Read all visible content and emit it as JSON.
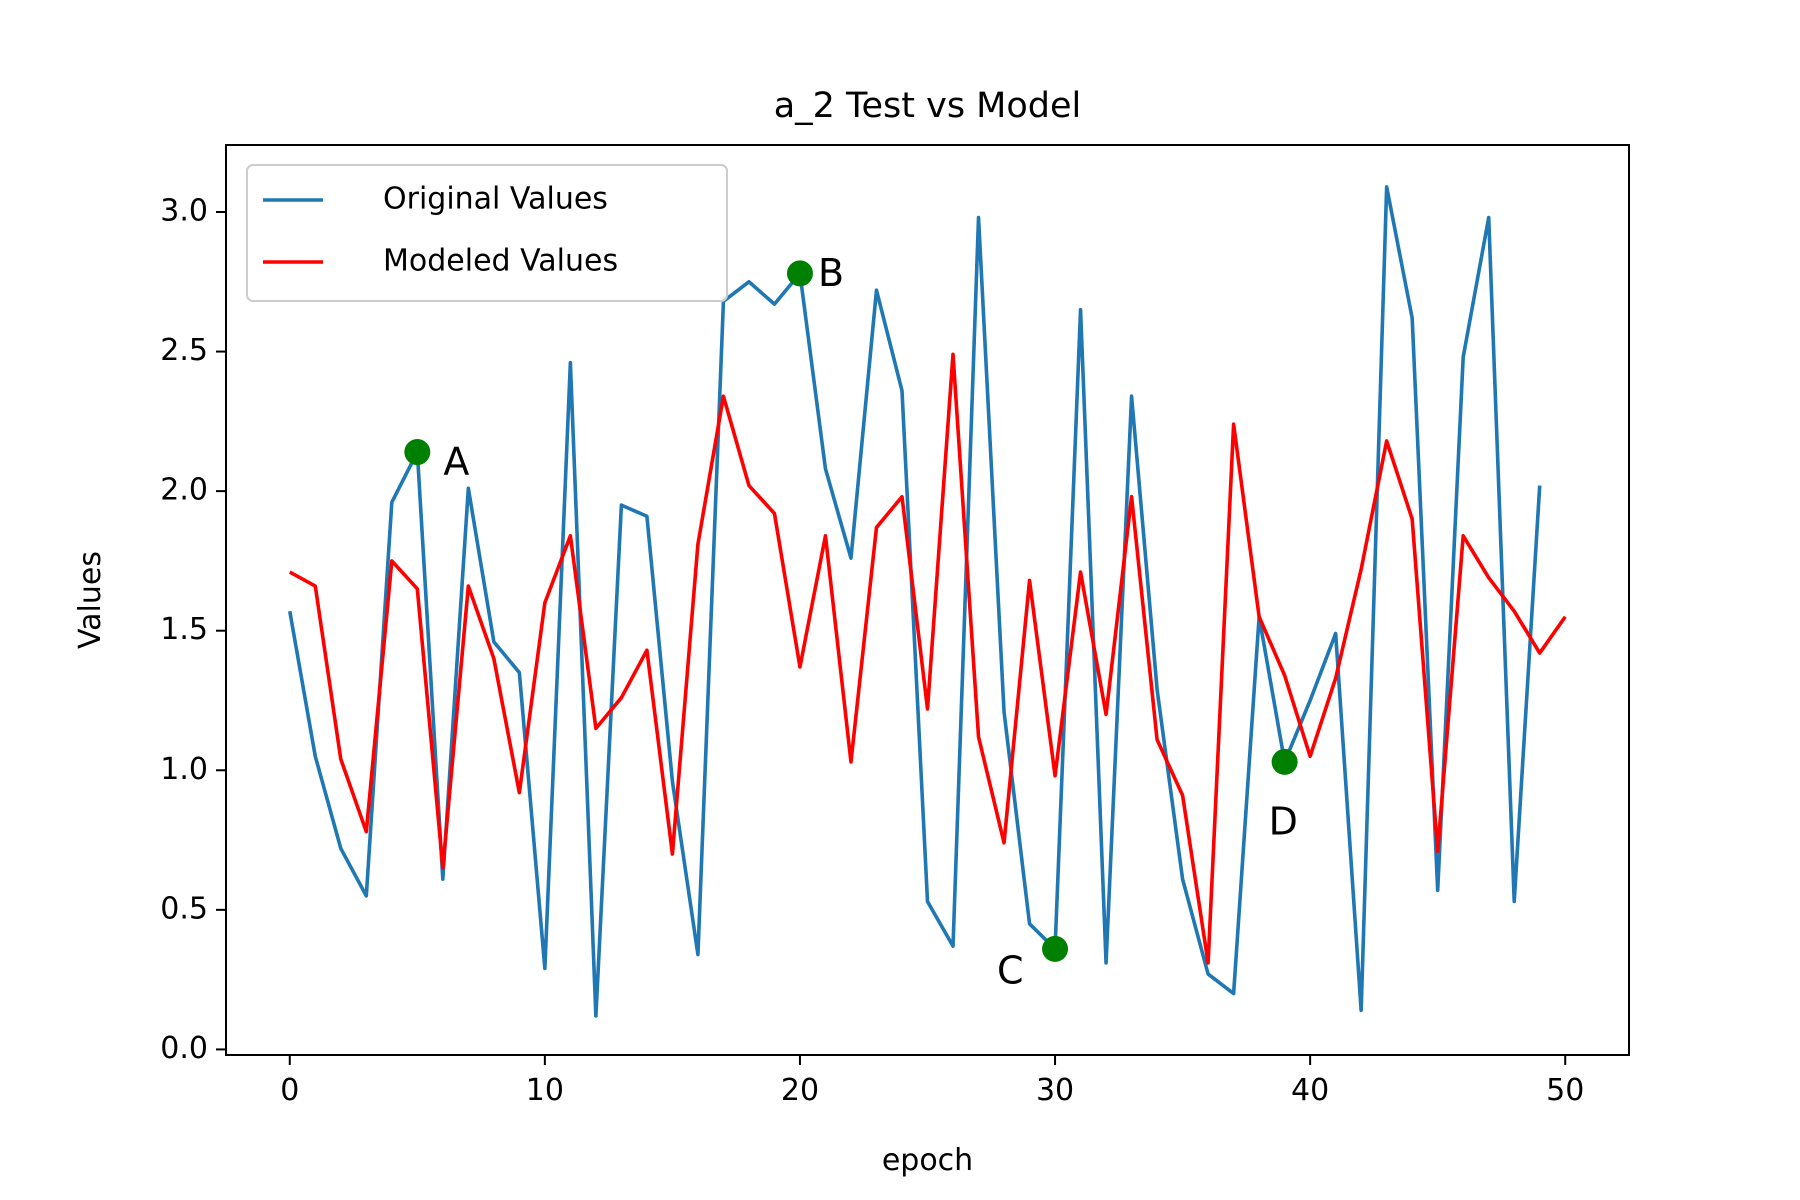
{
  "chart_data": {
    "type": "line",
    "title": "a_2 Test vs Model",
    "xlabel": "epoch",
    "ylabel": "Values",
    "xlim": [
      -2.5,
      52.5
    ],
    "ylim": [
      -0.02,
      3.24
    ],
    "xticks": [
      0,
      10,
      20,
      30,
      40,
      50
    ],
    "yticks": [
      0.0,
      0.5,
      1.0,
      1.5,
      2.0,
      2.5,
      3.0
    ],
    "xtick_labels": [
      "0",
      "10",
      "20",
      "30",
      "40",
      "50"
    ],
    "ytick_labels": [
      "0.0",
      "0.5",
      "1.0",
      "1.5",
      "2.0",
      "2.5",
      "3.0"
    ],
    "grid": false,
    "legend_position": "top-left",
    "series": [
      {
        "name": "Original Values",
        "color": "#1f77b4",
        "x": [
          0,
          1,
          2,
          3,
          4,
          5,
          6,
          7,
          8,
          9,
          10,
          11,
          12,
          13,
          14,
          15,
          16,
          17,
          18,
          19,
          20,
          21,
          22,
          23,
          24,
          25,
          26,
          27,
          28,
          29,
          30,
          31,
          32,
          33,
          34,
          35,
          36,
          37,
          38,
          39,
          40,
          41,
          42,
          43,
          44,
          45,
          46,
          47,
          48,
          49
        ],
        "y": [
          1.57,
          1.05,
          0.72,
          0.55,
          1.96,
          2.14,
          0.61,
          2.01,
          1.46,
          1.35,
          0.29,
          2.46,
          0.12,
          1.95,
          1.91,
          0.96,
          0.34,
          2.68,
          2.75,
          2.67,
          2.78,
          2.08,
          1.76,
          2.72,
          2.36,
          0.53,
          0.37,
          2.98,
          1.21,
          0.45,
          0.36,
          2.65,
          0.31,
          2.34,
          1.29,
          0.61,
          0.27,
          0.2,
          1.55,
          1.03,
          1.25,
          1.49,
          0.14,
          3.09,
          2.62,
          0.57,
          2.48,
          2.98,
          0.53,
          2.02
        ]
      },
      {
        "name": "Modeled Values",
        "color": "#ff0000",
        "x": [
          0,
          1,
          2,
          3,
          4,
          5,
          6,
          7,
          8,
          9,
          10,
          11,
          12,
          13,
          14,
          15,
          16,
          17,
          18,
          19,
          20,
          21,
          22,
          23,
          24,
          25,
          26,
          27,
          28,
          29,
          30,
          31,
          32,
          33,
          34,
          35,
          36,
          37,
          38,
          39,
          40,
          41,
          42,
          43,
          44,
          45,
          46,
          47,
          48,
          49,
          50
        ],
        "y": [
          1.71,
          1.66,
          1.04,
          0.78,
          1.75,
          1.65,
          0.65,
          1.66,
          1.4,
          0.92,
          1.6,
          1.84,
          1.15,
          1.26,
          1.43,
          0.7,
          1.81,
          2.34,
          2.02,
          1.92,
          1.37,
          1.84,
          1.03,
          1.87,
          1.98,
          1.22,
          2.49,
          1.12,
          0.74,
          1.68,
          0.98,
          1.71,
          1.2,
          1.98,
          1.11,
          0.91,
          0.31,
          2.24,
          1.55,
          1.34,
          1.05,
          1.33,
          1.72,
          2.18,
          1.9,
          0.71,
          1.84,
          1.69,
          1.57,
          1.42,
          1.55
        ]
      }
    ],
    "annotations": [
      {
        "label": "A",
        "x": 5,
        "y": 2.14,
        "color": "#008000"
      },
      {
        "label": "B",
        "x": 20,
        "y": 2.78,
        "color": "#008000"
      },
      {
        "label": "C",
        "x": 30,
        "y": 0.36,
        "color": "#008000"
      },
      {
        "label": "D",
        "x": 39,
        "y": 1.03,
        "color": "#008000"
      }
    ]
  }
}
